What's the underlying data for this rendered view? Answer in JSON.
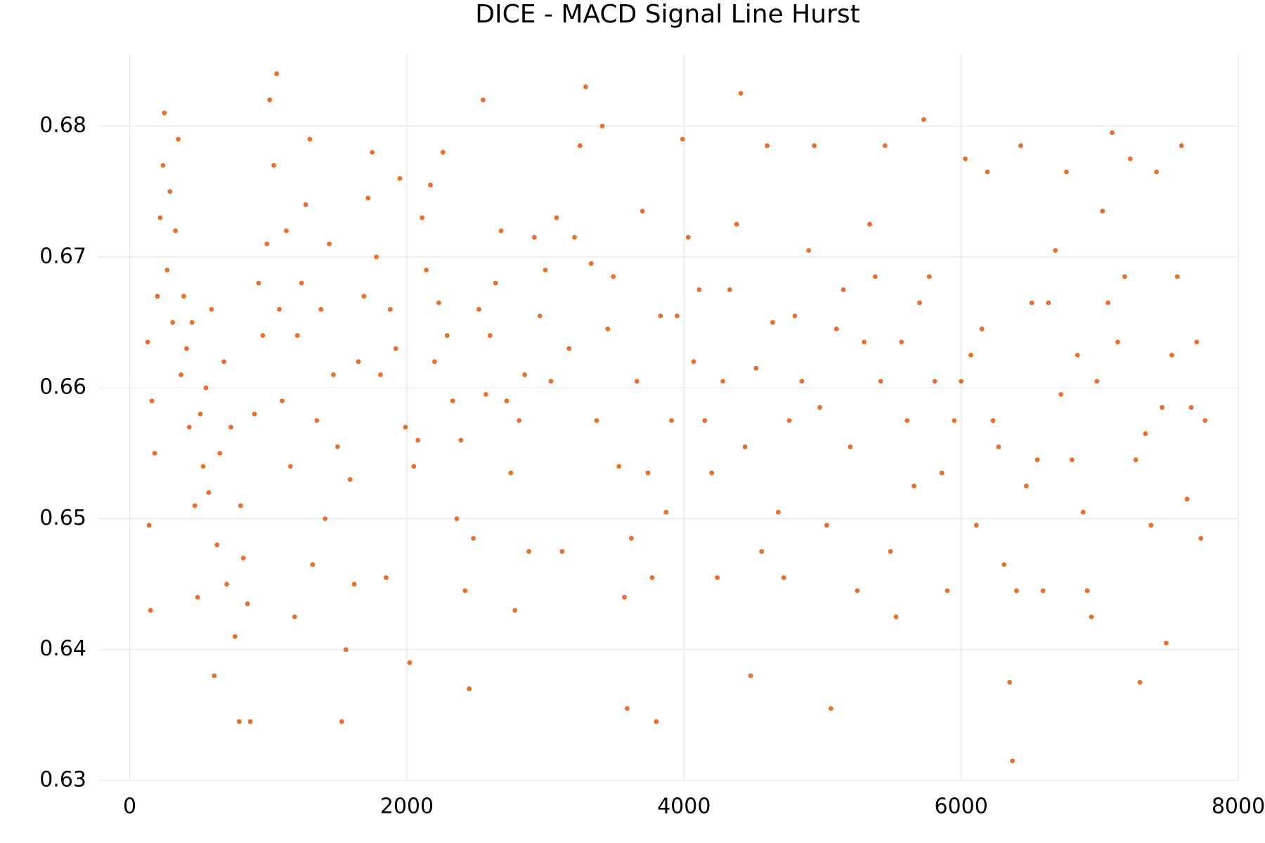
{
  "chart_data": {
    "type": "scatter",
    "title": "DICE - MACD Signal Line Hurst",
    "color": "#e8702a",
    "grid": true,
    "xlim": [
      -221,
      8000
    ],
    "xticks": [
      0,
      2000,
      4000,
      6000,
      8000
    ],
    "ylim": [
      0.63,
      0.6855
    ],
    "yticks": [
      0.63,
      0.64,
      0.65,
      0.66,
      0.67,
      0.68
    ],
    "x": [
      130,
      140,
      150,
      160,
      180,
      200,
      220,
      240,
      250,
      270,
      290,
      310,
      330,
      350,
      370,
      390,
      410,
      430,
      450,
      470,
      490,
      510,
      530,
      550,
      570,
      590,
      610,
      630,
      650,
      680,
      700,
      730,
      760,
      790,
      800,
      820,
      850,
      870,
      900,
      930,
      960,
      990,
      1010,
      1040,
      1060,
      1080,
      1100,
      1130,
      1160,
      1190,
      1210,
      1240,
      1270,
      1300,
      1320,
      1350,
      1380,
      1410,
      1440,
      1470,
      1500,
      1530,
      1560,
      1590,
      1620,
      1650,
      1690,
      1720,
      1750,
      1780,
      1810,
      1850,
      1880,
      1920,
      1950,
      1990,
      2020,
      2050,
      2080,
      2110,
      2140,
      2170,
      2200,
      2230,
      2260,
      2290,
      2330,
      2360,
      2390,
      2420,
      2450,
      2480,
      2520,
      2550,
      2570,
      2600,
      2640,
      2680,
      2720,
      2750,
      2780,
      2810,
      2850,
      2880,
      2920,
      2960,
      3000,
      3040,
      3080,
      3120,
      3170,
      3210,
      3250,
      3290,
      3330,
      3370,
      3410,
      3450,
      3490,
      3530,
      3570,
      3590,
      3620,
      3660,
      3700,
      3740,
      3770,
      3800,
      3830,
      3870,
      3910,
      3950,
      3990,
      4030,
      4070,
      4110,
      4150,
      4200,
      4240,
      4280,
      4330,
      4380,
      4410,
      4440,
      4480,
      4520,
      4560,
      4600,
      4640,
      4680,
      4720,
      4760,
      4800,
      4850,
      4900,
      4940,
      4980,
      5030,
      5060,
      5100,
      5150,
      5200,
      5250,
      5300,
      5340,
      5380,
      5420,
      5450,
      5490,
      5530,
      5570,
      5610,
      5660,
      5700,
      5730,
      5770,
      5810,
      5860,
      5900,
      5950,
      6000,
      6030,
      6070,
      6110,
      6150,
      6190,
      6230,
      6270,
      6310,
      6350,
      6370,
      6400,
      6430,
      6470,
      6510,
      6550,
      6590,
      6630,
      6680,
      6720,
      6760,
      6800,
      6840,
      6880,
      6910,
      6940,
      6980,
      7020,
      7060,
      7090,
      7130,
      7180,
      7220,
      7260,
      7290,
      7330,
      7370,
      7410,
      7450,
      7480,
      7520,
      7560,
      7590,
      7630,
      7660,
      7700,
      7730,
      7760
    ],
    "values": [
      0.6635,
      0.6495,
      0.643,
      0.659,
      0.655,
      0.667,
      0.673,
      0.677,
      0.681,
      0.669,
      0.675,
      0.665,
      0.672,
      0.679,
      0.661,
      0.667,
      0.663,
      0.657,
      0.665,
      0.651,
      0.644,
      0.658,
      0.654,
      0.66,
      0.652,
      0.666,
      0.638,
      0.648,
      0.655,
      0.662,
      0.645,
      0.657,
      0.641,
      0.6345,
      0.651,
      0.647,
      0.6435,
      0.6345,
      0.658,
      0.668,
      0.664,
      0.671,
      0.682,
      0.677,
      0.684,
      0.666,
      0.659,
      0.672,
      0.654,
      0.6425,
      0.664,
      0.668,
      0.674,
      0.679,
      0.6465,
      0.6575,
      0.666,
      0.65,
      0.671,
      0.661,
      0.6555,
      0.6345,
      0.64,
      0.653,
      0.645,
      0.662,
      0.667,
      0.6745,
      0.678,
      0.67,
      0.661,
      0.6455,
      0.666,
      0.663,
      0.676,
      0.657,
      0.639,
      0.654,
      0.656,
      0.673,
      0.669,
      0.6755,
      0.662,
      0.6665,
      0.678,
      0.664,
      0.659,
      0.65,
      0.656,
      0.6445,
      0.637,
      0.6485,
      0.666,
      0.682,
      0.6595,
      0.664,
      0.668,
      0.672,
      0.659,
      0.6535,
      0.643,
      0.6575,
      0.661,
      0.6475,
      0.6715,
      0.6655,
      0.669,
      0.6605,
      0.673,
      0.6475,
      0.663,
      0.6715,
      0.6785,
      0.683,
      0.6695,
      0.6575,
      0.68,
      0.6645,
      0.6685,
      0.654,
      0.644,
      0.6355,
      0.6485,
      0.6605,
      0.6735,
      0.6535,
      0.6455,
      0.6345,
      0.6655,
      0.6505,
      0.6575,
      0.6655,
      0.679,
      0.6715,
      0.662,
      0.6675,
      0.6575,
      0.6535,
      0.6455,
      0.6605,
      0.6675,
      0.6725,
      0.6825,
      0.6555,
      0.638,
      0.6615,
      0.6475,
      0.6785,
      0.665,
      0.6505,
      0.6455,
      0.6575,
      0.6655,
      0.6605,
      0.6705,
      0.6785,
      0.6585,
      0.6495,
      0.6355,
      0.6645,
      0.6675,
      0.6555,
      0.6445,
      0.6635,
      0.6725,
      0.6685,
      0.6605,
      0.6785,
      0.6475,
      0.6425,
      0.6635,
      0.6575,
      0.6525,
      0.6665,
      0.6805,
      0.6685,
      0.6605,
      0.6535,
      0.6445,
      0.6575,
      0.6605,
      0.6775,
      0.6625,
      0.6495,
      0.6645,
      0.6765,
      0.6575,
      0.6555,
      0.6465,
      0.6375,
      0.6315,
      0.6445,
      0.6785,
      0.6525,
      0.6665,
      0.6545,
      0.6445,
      0.6665,
      0.6705,
      0.6595,
      0.6765,
      0.6545,
      0.6625,
      0.6505,
      0.6445,
      0.6425,
      0.6605,
      0.6735,
      0.6665,
      0.6795,
      0.6635,
      0.6685,
      0.6775,
      0.6545,
      0.6375,
      0.6565,
      0.6495,
      0.6765,
      0.6585,
      0.6405,
      0.6625,
      0.6685,
      0.6785,
      0.6515,
      0.6585,
      0.6635,
      0.6485,
      0.6575
    ]
  }
}
